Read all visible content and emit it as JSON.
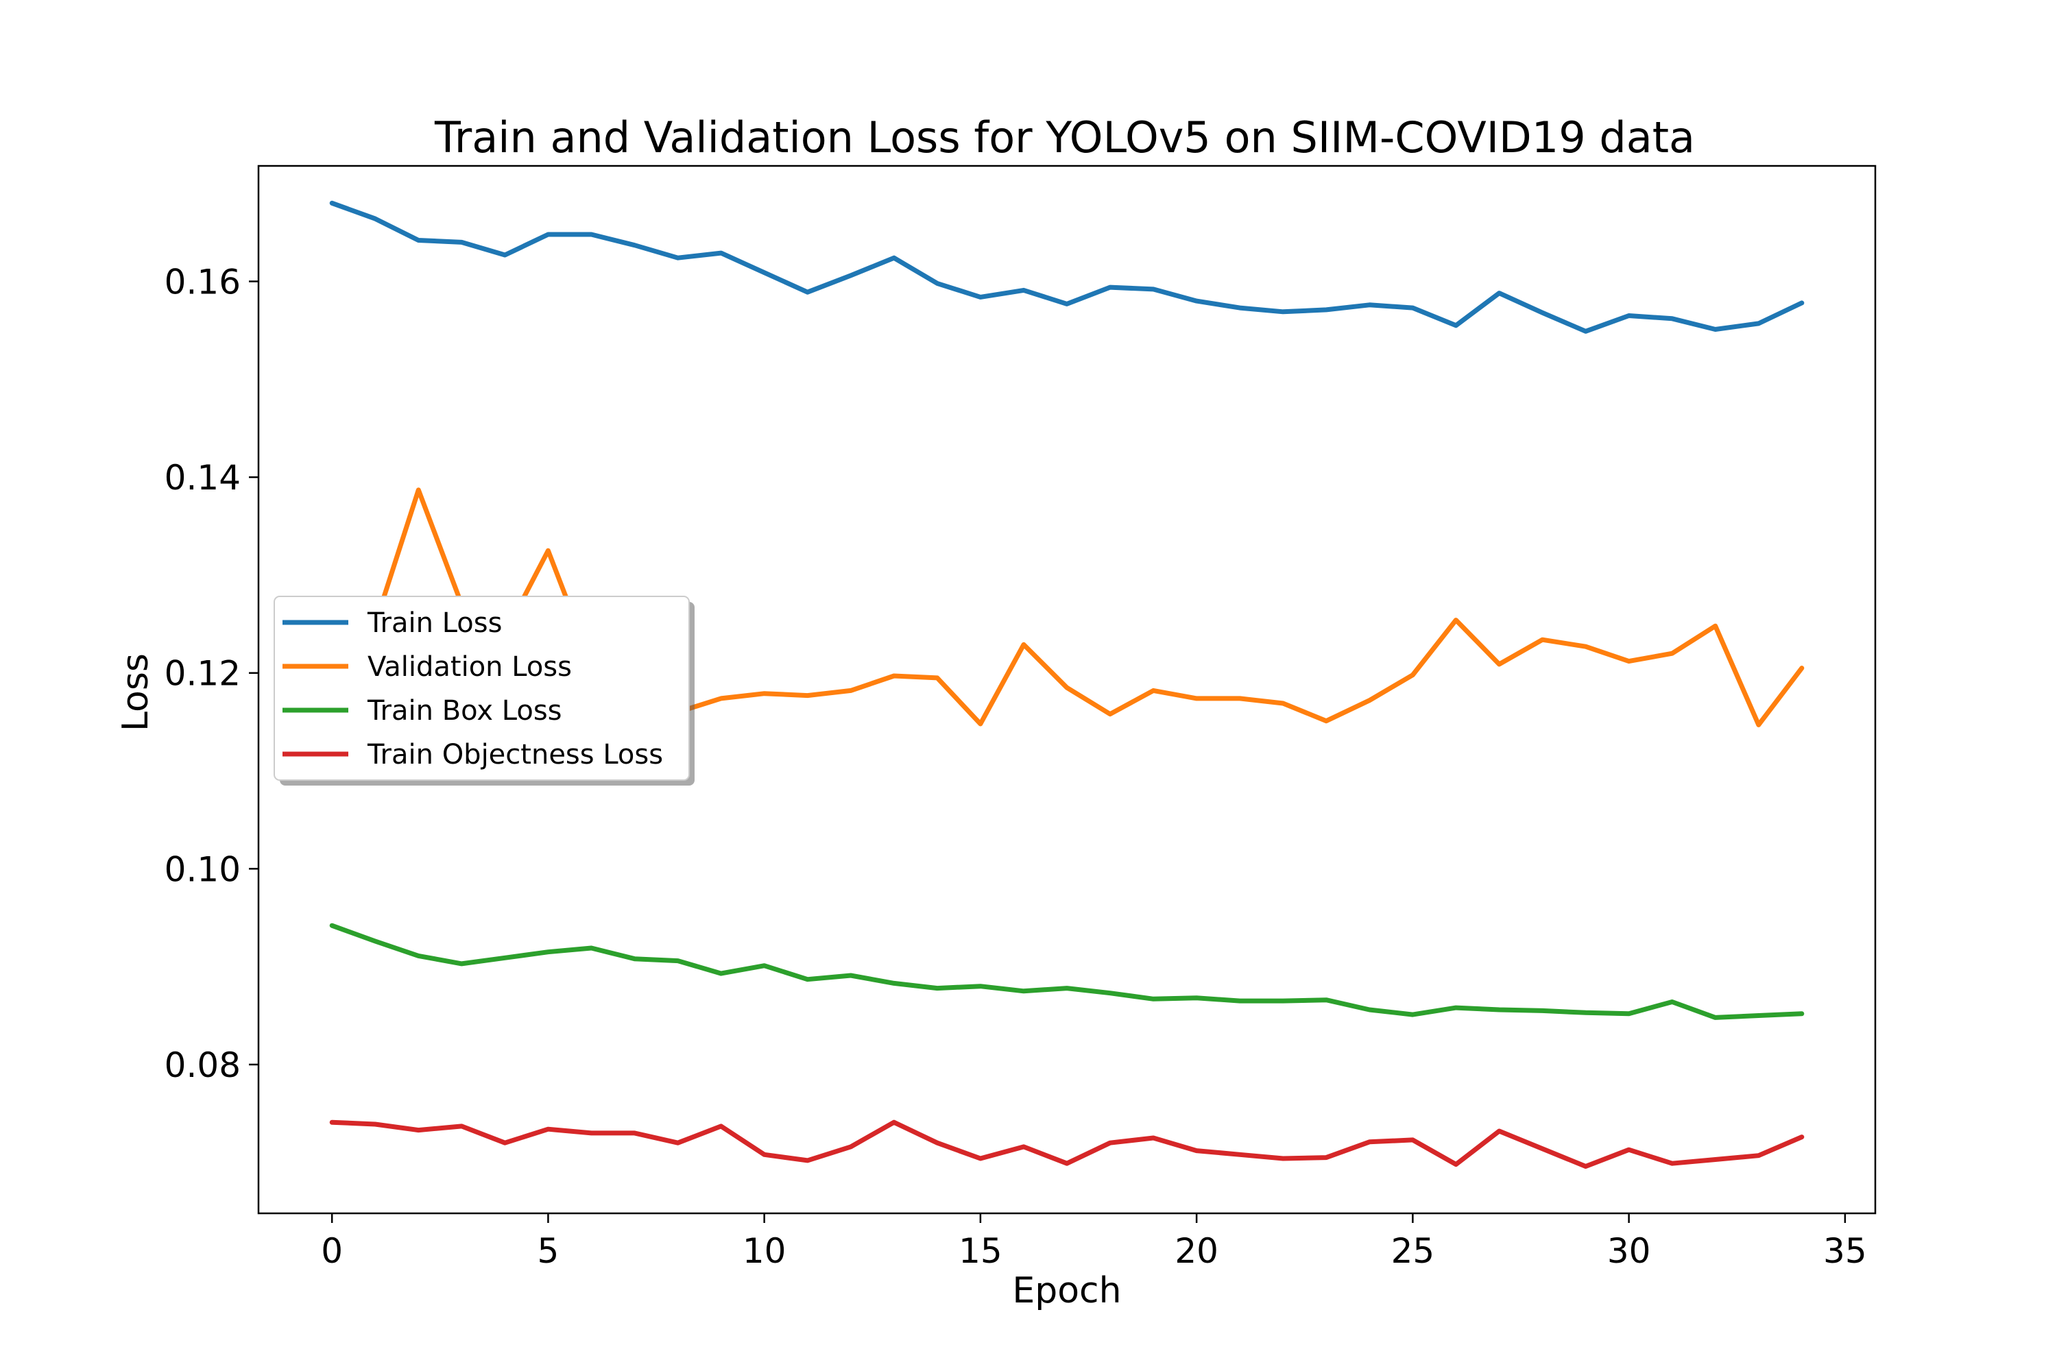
{
  "chart_data": {
    "type": "line",
    "title": "Train and Validation Loss for YOLOv5 on SIIM-COVID19 data",
    "xlabel": "Epoch",
    "ylabel": "Loss",
    "xlim": [
      -1.7,
      35.7
    ],
    "ylim": [
      0.0648,
      0.1718
    ],
    "xticks": [
      0,
      5,
      10,
      15,
      20,
      25,
      30,
      35
    ],
    "yticks": [
      0.08,
      0.1,
      0.12,
      0.14,
      0.16
    ],
    "ytick_labels": [
      "0.08",
      "0.10",
      "0.12",
      "0.14",
      "0.16"
    ],
    "grid": false,
    "legend_position": "center-left",
    "x": [
      0,
      1,
      2,
      3,
      4,
      5,
      6,
      7,
      8,
      9,
      10,
      11,
      12,
      13,
      14,
      15,
      16,
      17,
      18,
      19,
      20,
      21,
      22,
      23,
      24,
      25,
      26,
      27,
      28,
      29,
      30,
      31,
      32,
      33,
      34
    ],
    "series": [
      {
        "name": "Train Loss",
        "color": "#1f77b4",
        "values": [
          0.168,
          0.1664,
          0.1642,
          0.164,
          0.1627,
          0.1648,
          0.1648,
          0.1637,
          0.1624,
          0.1629,
          0.1609,
          0.1589,
          0.1606,
          0.1624,
          0.1598,
          0.1584,
          0.1591,
          0.1577,
          0.1594,
          0.1592,
          0.158,
          0.1573,
          0.1569,
          0.1571,
          0.1576,
          0.1573,
          0.1555,
          0.1588,
          0.1568,
          0.1549,
          0.1565,
          0.1562,
          0.1551,
          0.1557,
          0.1578
        ]
      },
      {
        "name": "Validation Loss",
        "color": "#ff7f0e",
        "values": [
          0.122,
          0.125,
          0.1387,
          0.127,
          0.124,
          0.1325,
          0.121,
          0.118,
          0.116,
          0.1174,
          0.1179,
          0.1177,
          0.1182,
          0.1197,
          0.1195,
          0.1148,
          0.1229,
          0.1185,
          0.1158,
          0.1182,
          0.1174,
          0.1174,
          0.1169,
          0.1151,
          0.1172,
          0.1198,
          0.1254,
          0.1209,
          0.1234,
          0.1227,
          0.1212,
          0.122,
          0.1248,
          0.1147,
          0.1205
        ]
      },
      {
        "name": "Train Box Loss",
        "color": "#2ca02c",
        "values": [
          0.0942,
          0.0926,
          0.0911,
          0.0903,
          0.0909,
          0.0915,
          0.0919,
          0.0908,
          0.0906,
          0.0893,
          0.0901,
          0.0887,
          0.0891,
          0.0883,
          0.0878,
          0.088,
          0.0875,
          0.0878,
          0.0873,
          0.0867,
          0.0868,
          0.0865,
          0.0865,
          0.0866,
          0.0856,
          0.0851,
          0.0858,
          0.0856,
          0.0855,
          0.0853,
          0.0852,
          0.0864,
          0.0848,
          0.085,
          0.0852
        ]
      },
      {
        "name": "Train Objectness Loss",
        "color": "#d62728",
        "values": [
          0.0741,
          0.0739,
          0.0733,
          0.0737,
          0.072,
          0.0734,
          0.073,
          0.073,
          0.072,
          0.0737,
          0.0708,
          0.0702,
          0.0716,
          0.0741,
          0.072,
          0.0704,
          0.0716,
          0.0699,
          0.072,
          0.0725,
          0.0712,
          0.0708,
          0.0704,
          0.0705,
          0.0721,
          0.0723,
          0.0698,
          0.0732,
          0.0714,
          0.0696,
          0.0713,
          0.0699,
          0.0703,
          0.0707,
          0.0726
        ]
      }
    ]
  }
}
